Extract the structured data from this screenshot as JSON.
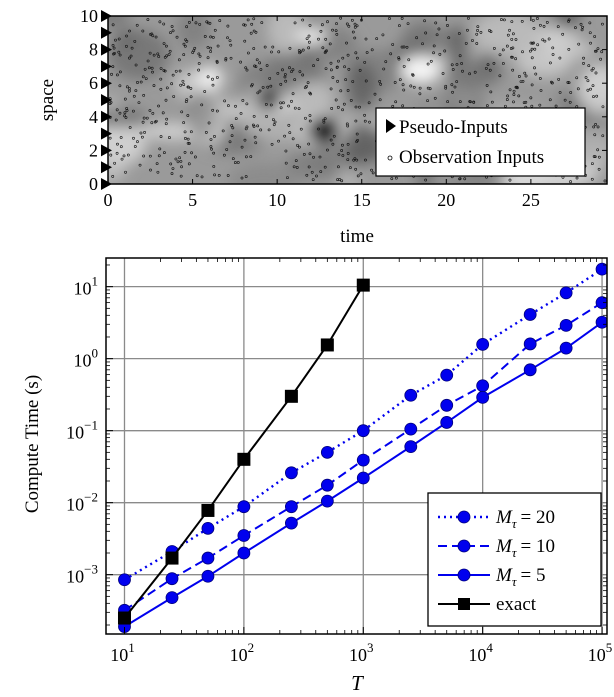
{
  "chart_data": [
    {
      "type": "heatmap",
      "xlabel": "time",
      "ylabel": "space",
      "xlim": [
        0,
        29.5
      ],
      "ylim": [
        0,
        10
      ],
      "x_ticks": [
        0,
        5,
        10,
        15,
        20,
        25
      ],
      "y_ticks": [
        0,
        2,
        4,
        6,
        8,
        10
      ],
      "colormap": "grayscale",
      "legend": {
        "placement": "lower-right",
        "entries": [
          {
            "label": "Pseudo-Inputs",
            "marker": "right-triangle"
          },
          {
            "label": "Observation Inputs",
            "marker": "small-circle"
          }
        ]
      },
      "pseudo_inputs": {
        "x": [
          0,
          0,
          0,
          0,
          0,
          0,
          0,
          0,
          0,
          0,
          0
        ],
        "y": [
          0,
          1,
          2,
          3,
          4,
          5,
          6,
          7,
          8,
          9,
          10
        ]
      },
      "grid": false
    },
    {
      "type": "line",
      "xlabel": "T",
      "ylabel": "Compute Time (s)",
      "x_scale": "log",
      "y_scale": "log",
      "xlim": [
        7,
        110000
      ],
      "ylim": [
        0.00015,
        25
      ],
      "x_ticks": [
        10,
        100,
        1000,
        10000,
        100000
      ],
      "x_tick_labels": [
        {
          "base": "10",
          "exp": "1"
        },
        {
          "base": "10",
          "exp": "2"
        },
        {
          "base": "10",
          "exp": "3"
        },
        {
          "base": "10",
          "exp": "4"
        },
        {
          "base": "10",
          "exp": "5"
        }
      ],
      "y_ticks": [
        0.001,
        0.01,
        0.1,
        1,
        10
      ],
      "y_tick_labels": [
        {
          "base": "10",
          "exp": "−3"
        },
        {
          "base": "10",
          "exp": "−2"
        },
        {
          "base": "10",
          "exp": "−1"
        },
        {
          "base": "10",
          "exp": "0"
        },
        {
          "base": "10",
          "exp": "1"
        }
      ],
      "grid": true,
      "legend_placement": "lower-right",
      "series": [
        {
          "name_var": "M",
          "name_sub": "τ",
          "name_val": "= 20",
          "color": "#0000ee",
          "marker": "circle",
          "linestyle": "dotted",
          "x": [
            10,
            25,
            50,
            100,
            250,
            500,
            1000,
            2500,
            5000,
            10000,
            25000,
            50000,
            100000
          ],
          "y": [
            0.00085,
            0.0021,
            0.0044,
            0.0088,
            0.026,
            0.05,
            0.1,
            0.31,
            0.59,
            1.58,
            4.1,
            8.2,
            17.5
          ]
        },
        {
          "name_var": "M",
          "name_sub": "τ",
          "name_val": "= 10",
          "color": "#0000ee",
          "marker": "circle",
          "linestyle": "dashed",
          "x": [
            10,
            25,
            50,
            100,
            250,
            500,
            1000,
            2500,
            5000,
            10000,
            25000,
            50000,
            100000
          ],
          "y": [
            0.00032,
            0.00088,
            0.0017,
            0.0035,
            0.0088,
            0.0175,
            0.039,
            0.105,
            0.225,
            0.42,
            1.6,
            2.9,
            6.0
          ]
        },
        {
          "name_var": "M",
          "name_sub": "τ",
          "name_val": "= 5",
          "color": "#0000ee",
          "marker": "circle",
          "linestyle": "solid",
          "x": [
            10,
            25,
            50,
            100,
            250,
            500,
            1000,
            2500,
            5000,
            10000,
            25000,
            50000,
            100000
          ],
          "y": [
            0.00019,
            0.00048,
            0.00095,
            0.002,
            0.0052,
            0.0105,
            0.022,
            0.06,
            0.13,
            0.29,
            0.7,
            1.4,
            3.2
          ]
        },
        {
          "name": "exact",
          "color": "#000000",
          "marker": "square",
          "linestyle": "solid",
          "x": [
            10,
            25,
            50,
            100,
            250,
            500,
            1000
          ],
          "y": [
            0.00025,
            0.0017,
            0.0078,
            0.04,
            0.3,
            1.55,
            10.5
          ]
        }
      ]
    }
  ]
}
